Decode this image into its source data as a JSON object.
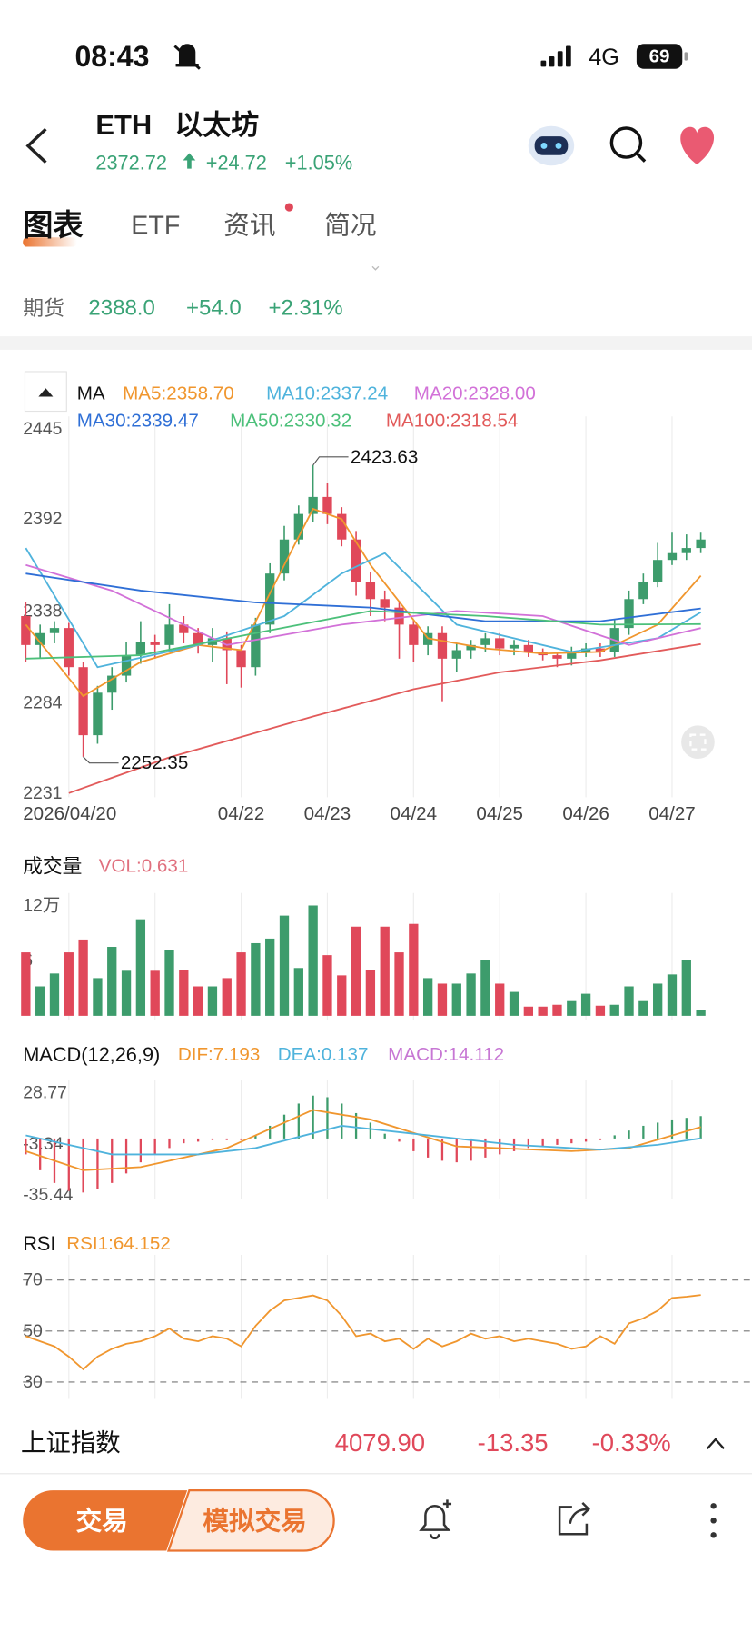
{
  "status_bar": {
    "time": "08:43",
    "network": "4G",
    "battery": "69"
  },
  "header": {
    "symbol": "ETH",
    "name": "以太坊",
    "price": "2372.72",
    "change": "+24.72",
    "change_percent": "+1.05%"
  },
  "tabs": [
    "图表",
    "ETF",
    "资讯",
    "简况"
  ],
  "futures": {
    "label": "期货",
    "price": "2388.0",
    "change": "+54.0",
    "change_percent": "+2.31%"
  },
  "chart_data": [
    {
      "type": "candlestick",
      "title": "MA",
      "xlim": [
        -0.2,
        48.9
      ],
      "xticks": [
        {
          "value": 3,
          "label": "2026/04/20"
        },
        {
          "value": 9,
          "label": null
        },
        {
          "value": 15,
          "label": "04/22"
        },
        {
          "value": 21,
          "label": "04/23"
        },
        {
          "value": 27,
          "label": "04/24"
        },
        {
          "value": 33,
          "label": "04/25"
        },
        {
          "value": 39,
          "label": "04/26"
        },
        {
          "value": 45,
          "label": "04/27"
        }
      ],
      "ylim": [
        2231,
        2445
      ],
      "yticks": [
        2231,
        2284,
        2338,
        2392,
        2445
      ],
      "up_color": "#3d9c6c",
      "down_color": "#e0485a",
      "open": [
        2335,
        2318,
        2325,
        2328,
        2305,
        2265,
        2290,
        2300,
        2312,
        2320,
        2318,
        2330,
        2325,
        2318,
        2322,
        2315,
        2305,
        2330,
        2360,
        2380,
        2395,
        2405,
        2395,
        2380,
        2355,
        2345,
        2340,
        2330,
        2318,
        2325,
        2310,
        2315,
        2318,
        2322,
        2316,
        2318,
        2314,
        2312,
        2310,
        2314,
        2316,
        2314,
        2328,
        2345,
        2355,
        2368,
        2372,
        2375
      ],
      "high": [
        2343,
        2330,
        2332,
        2331,
        2308,
        2294,
        2305,
        2320,
        2332,
        2324,
        2342,
        2335,
        2328,
        2328,
        2326,
        2318,
        2334,
        2366,
        2388,
        2400,
        2423.63,
        2413,
        2399,
        2385,
        2361,
        2350,
        2344,
        2333,
        2329,
        2329,
        2319,
        2321,
        2325,
        2325,
        2321,
        2321,
        2316,
        2314,
        2317,
        2319,
        2319,
        2333,
        2350,
        2360,
        2378,
        2384,
        2383,
        2384
      ],
      "low": [
        2308,
        2310,
        2319,
        2300,
        2252.35,
        2260,
        2280,
        2296,
        2307,
        2310,
        2314,
        2319,
        2313,
        2308,
        2295,
        2293,
        2300,
        2325,
        2356,
        2377,
        2390,
        2389,
        2376,
        2347,
        2335,
        2332,
        2310,
        2308,
        2312,
        2285,
        2302,
        2310,
        2314,
        2312,
        2312,
        2311,
        2309,
        2305,
        2306,
        2311,
        2311,
        2311,
        2324,
        2342,
        2352,
        2365,
        2368,
        2372
      ],
      "close": [
        2318,
        2325,
        2328,
        2305,
        2265,
        2290,
        2300,
        2312,
        2320,
        2318,
        2330,
        2325,
        2318,
        2322,
        2315,
        2305,
        2330,
        2360,
        2380,
        2395,
        2405,
        2395,
        2380,
        2355,
        2345,
        2340,
        2330,
        2318,
        2325,
        2310,
        2315,
        2318,
        2322,
        2316,
        2318,
        2314,
        2312,
        2310,
        2314,
        2316,
        2314,
        2328,
        2345,
        2355,
        2368,
        2372,
        2375,
        2380
      ],
      "series": [
        {
          "name": "MA5:2358.70",
          "color": "#f0962e",
          "x": [
            0,
            4,
            8,
            12,
            15,
            18,
            20,
            22,
            24,
            28,
            32,
            36,
            40,
            44,
            47
          ],
          "values": [
            2330,
            2288,
            2308,
            2318,
            2315,
            2365,
            2398,
            2392,
            2365,
            2322,
            2316,
            2313,
            2314,
            2330,
            2358.7
          ]
        },
        {
          "name": "MA10:2337.24",
          "color": "#4fb3dc",
          "x": [
            0,
            5,
            12,
            18,
            22,
            25,
            30,
            38,
            44,
            47
          ],
          "values": [
            2375,
            2305,
            2318,
            2335,
            2360,
            2372,
            2330,
            2314,
            2322,
            2337.24
          ]
        },
        {
          "name": "MA20:2328.00",
          "color": "#d271d8",
          "x": [
            0,
            6,
            14,
            22,
            30,
            36,
            42,
            47
          ],
          "values": [
            2365,
            2350,
            2318,
            2330,
            2338,
            2335,
            2318,
            2328.0
          ]
        },
        {
          "name": "MA30:2339.47",
          "color": "#2f6fd6",
          "x": [
            0,
            8,
            16,
            24,
            32,
            40,
            47
          ],
          "values": [
            2360,
            2350,
            2343,
            2340,
            2332,
            2332,
            2339.47
          ]
        },
        {
          "name": "MA50:2330.32",
          "color": "#4cc07a",
          "x": [
            0,
            8,
            16,
            24,
            32,
            40,
            47
          ],
          "values": [
            2310,
            2312,
            2325,
            2338,
            2335,
            2330,
            2330.32
          ]
        },
        {
          "name": "MA100:2318.54",
          "color": "#e25a5a",
          "x": [
            3,
            10,
            20,
            27,
            33,
            40,
            47
          ],
          "values": [
            2231,
            2252,
            2276,
            2292,
            2302,
            2309,
            2318.54
          ]
        }
      ]
    },
    {
      "type": "bar",
      "title": "成交量",
      "ylim": [
        0,
        12
      ],
      "yticks": [
        6,
        {
          "value": 12,
          "label": "12万"
        }
      ],
      "series": [
        {
          "name": "VOL:0.631",
          "color": "#e0707e",
          "values": [
            6.9,
            3.2,
            4.6,
            6.9,
            8.3,
            4.1,
            7.5,
            4.9,
            10.5,
            4.9,
            7.2,
            5.0,
            3.2,
            3.2,
            4.1,
            6.9,
            7.9,
            8.4,
            10.9,
            5.2,
            12,
            6.6,
            4.4,
            9.7,
            5.0,
            9.7,
            6.9,
            10.0,
            4.1,
            3.5,
            3.5,
            4.6,
            6.1,
            3.5,
            2.6,
            1.0,
            1.0,
            1.2,
            1.6,
            2.4,
            1.1,
            1.2,
            3.2,
            1.6,
            3.5,
            4.5,
            6.1,
            0.631
          ]
        }
      ]
    },
    {
      "type": "macd",
      "title": "MACD(12,26,9)",
      "ylim": [
        -35.44,
        28.77
      ],
      "yticks": [
        -35.44,
        -3.34,
        28.77
      ],
      "histogram": {
        "name": "MACD:14.112",
        "color": "#c777d4",
        "values": [
          -10,
          -20,
          -28,
          -33,
          -34,
          -32,
          -28,
          -22,
          -15,
          -10,
          -6,
          -3,
          -2,
          -1,
          -1,
          -1,
          2,
          8,
          15,
          22,
          27,
          26,
          22,
          16,
          10,
          3,
          -2,
          -8,
          -12,
          -14,
          -15,
          -14,
          -12,
          -10,
          -8,
          -6,
          -5,
          -4,
          -3,
          -2,
          -1,
          2,
          5,
          8,
          10,
          12,
          13,
          14.112
        ]
      },
      "series": [
        {
          "name": "DIF:7.193",
          "color": "#f0962e",
          "x": [
            0,
            4,
            8,
            14,
            20,
            24,
            30,
            38,
            42,
            47
          ],
          "values": [
            -8,
            -20,
            -18,
            -6,
            18,
            12,
            -5,
            -8,
            -6,
            7.193
          ]
        },
        {
          "name": "DEA:0.137",
          "color": "#4fb3dc",
          "x": [
            0,
            6,
            12,
            16,
            22,
            28,
            34,
            40,
            44,
            47
          ],
          "values": [
            2,
            -10,
            -10,
            -6,
            8,
            2,
            -4,
            -7,
            -4,
            0.137
          ]
        }
      ]
    },
    {
      "type": "line",
      "title": "RSI",
      "ylim": [
        25,
        75
      ],
      "yticks": [
        30,
        50,
        70
      ],
      "grid": true,
      "series": [
        {
          "name": "RSI1:64.152",
          "color": "#f0962e",
          "values": [
            48,
            46,
            44,
            40,
            35,
            40,
            43,
            45,
            46,
            48,
            51,
            47,
            46,
            48,
            47,
            44,
            52,
            58,
            62,
            63,
            64,
            62,
            56,
            48,
            49,
            46,
            47,
            43,
            47,
            44,
            46,
            49,
            47,
            48,
            46,
            47,
            46,
            45,
            43,
            44,
            48,
            45,
            53,
            55,
            58,
            63,
            63.5,
            64.152
          ]
        }
      ]
    }
  ],
  "index_ticker": {
    "name": "上证指数",
    "price": "4079.90",
    "change": "-13.35",
    "change_percent": "-0.33%"
  },
  "actions": {
    "trade": "交易",
    "paper_trade": "模拟交易"
  }
}
